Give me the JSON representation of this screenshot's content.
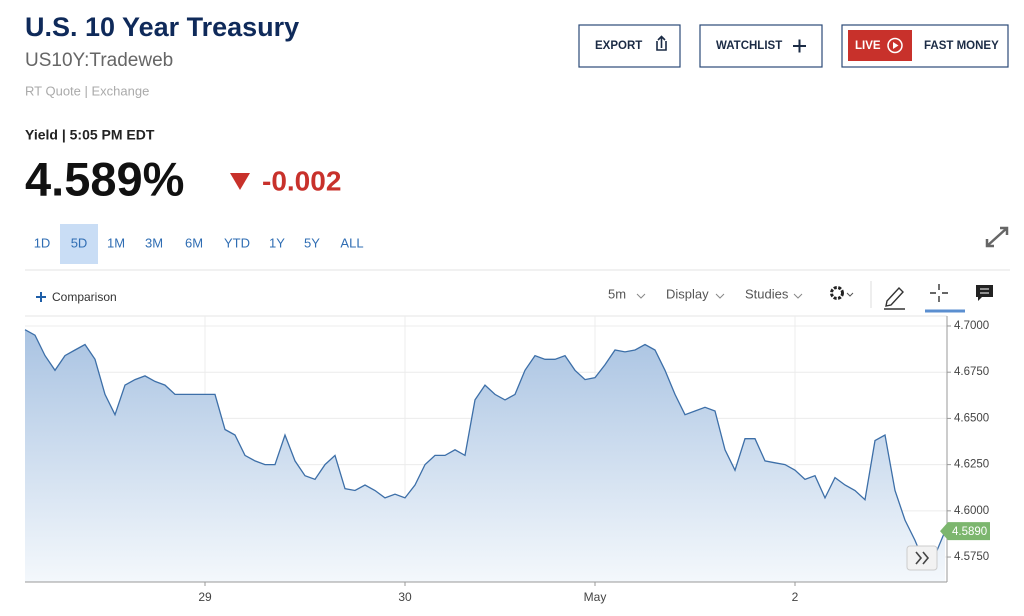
{
  "header": {
    "title": "U.S. 10 Year Treasury",
    "symbol": "US10Y:Tradeweb",
    "quote_info": "RT Quote | Exchange"
  },
  "buttons": {
    "export": "EXPORT",
    "watchlist": "WATCHLIST",
    "live": "LIVE",
    "fast_money": "FAST MONEY"
  },
  "quote": {
    "label": "Yield | 5:05 PM EDT",
    "price": "4.589%",
    "change": "-0.002"
  },
  "ranges": [
    "1D",
    "5D",
    "1M",
    "3M",
    "6M",
    "YTD",
    "1Y",
    "5Y",
    "ALL"
  ],
  "selected_range": "5D",
  "toolbar": {
    "comparison": "Comparison",
    "interval": "5m",
    "display": "Display",
    "studies": "Studies"
  },
  "chart_data": {
    "type": "area",
    "color": "#3d6fa8",
    "categories": [
      null,
      null,
      null,
      null,
      null,
      null,
      null,
      null,
      null,
      null,
      null,
      null,
      null,
      null,
      null,
      null,
      null,
      null,
      "29",
      null,
      null,
      null,
      null,
      null,
      null,
      null,
      null,
      null,
      null,
      null,
      null,
      null,
      null,
      null,
      null,
      null,
      null,
      null,
      "30",
      null,
      null,
      null,
      null,
      null,
      null,
      null,
      null,
      null,
      null,
      null,
      null,
      null,
      null,
      null,
      null,
      null,
      null,
      "May",
      null,
      null,
      null,
      null,
      null,
      null,
      null,
      null,
      null,
      null,
      null,
      null,
      null,
      null,
      null,
      null,
      null,
      null,
      null,
      "2",
      null,
      null,
      null,
      null,
      null,
      null,
      null,
      null,
      null,
      null,
      null,
      null,
      null,
      null,
      null
    ],
    "values": [
      4.698,
      4.695,
      4.684,
      4.676,
      4.684,
      4.687,
      4.69,
      4.682,
      4.663,
      4.652,
      4.668,
      4.671,
      4.673,
      4.67,
      4.668,
      4.663,
      4.663,
      4.663,
      4.663,
      4.663,
      4.644,
      4.641,
      4.63,
      4.627,
      4.625,
      4.625,
      4.641,
      4.627,
      4.619,
      4.617,
      4.625,
      4.63,
      4.612,
      4.611,
      4.614,
      4.611,
      4.607,
      4.609,
      4.607,
      4.614,
      4.625,
      4.63,
      4.63,
      4.633,
      4.63,
      4.66,
      4.668,
      4.663,
      4.66,
      4.663,
      4.676,
      4.684,
      4.682,
      4.682,
      4.684,
      4.676,
      4.671,
      4.672,
      4.679,
      4.687,
      4.686,
      4.687,
      4.69,
      4.687,
      4.676,
      4.663,
      4.652,
      4.654,
      4.656,
      4.654,
      4.633,
      4.622,
      4.639,
      4.639,
      4.627,
      4.626,
      4.625,
      4.622,
      4.617,
      4.619,
      4.607,
      4.618,
      4.614,
      4.611,
      4.606,
      4.638,
      4.641,
      4.611,
      4.595,
      4.584,
      4.571,
      4.576,
      4.589
    ],
    "last_label": "4.5890",
    "ylim": [
      4.5615,
      4.7054
    ],
    "yticks": [
      {
        "value": 4.7,
        "label": "4.7000"
      },
      {
        "value": 4.675,
        "label": "4.6750"
      },
      {
        "value": 4.65,
        "label": "4.6500"
      },
      {
        "value": 4.625,
        "label": "4.6250"
      },
      {
        "value": 4.6,
        "label": "4.6000"
      },
      {
        "value": 4.575,
        "label": "4.5750"
      }
    ],
    "grid": true
  }
}
